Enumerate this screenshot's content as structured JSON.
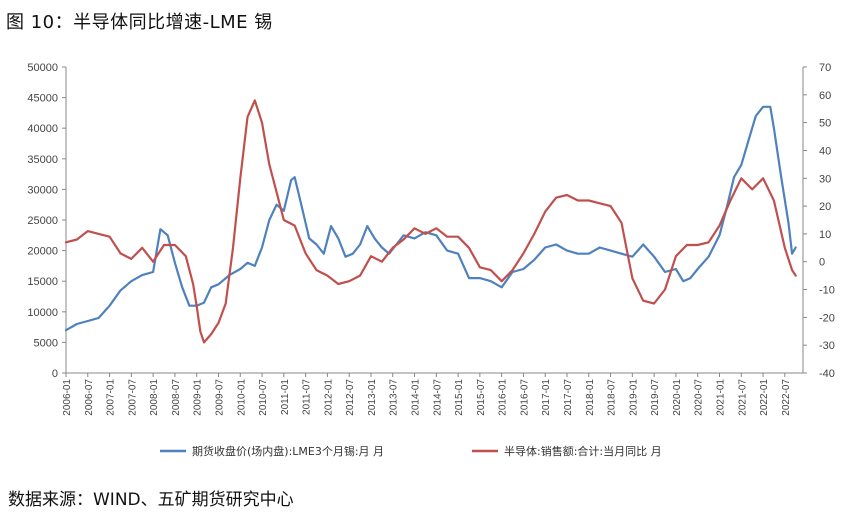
{
  "figure_title": "图 10：半导体同比增速-LME 锡",
  "source_note": "数据来源：WIND、五矿期货研究中心",
  "colors": {
    "tin": "#4f81bd",
    "semi": "#c0504d",
    "axis": "#888888"
  },
  "chart_data": {
    "type": "line",
    "title": "图 10：半导体同比增速-LME 锡",
    "grid": false,
    "legend_position": "bottom",
    "x_ticks": [
      "2006-01",
      "2006-07",
      "2007-01",
      "2007-07",
      "2008-01",
      "2008-07",
      "2009-01",
      "2009-07",
      "2010-01",
      "2010-07",
      "2011-01",
      "2011-07",
      "2012-01",
      "2012-07",
      "2013-01",
      "2013-07",
      "2014-01",
      "2014-07",
      "2015-01",
      "2015-07",
      "2016-01",
      "2016-07",
      "2017-01",
      "2017-07",
      "2018-01",
      "2018-07",
      "2019-01",
      "2019-07",
      "2020-01",
      "2020-07",
      "2021-01",
      "2021-07",
      "2022-01",
      "2022-07"
    ],
    "y_left": {
      "min": 0,
      "max": 50000,
      "ticks": [
        "0",
        "5000",
        "10000",
        "15000",
        "20000",
        "25000",
        "30000",
        "35000",
        "40000",
        "45000",
        "50000"
      ]
    },
    "y_right": {
      "min": -40,
      "max": 70,
      "ticks": [
        "-40",
        "-30",
        "-20",
        "-10",
        "0",
        "10",
        "20",
        "30",
        "40",
        "50",
        "60",
        "70"
      ]
    },
    "series": [
      {
        "name": "期货收盘价(场内盘):LME3个月锡:月 月",
        "axis": "left",
        "x": [
          "2006-01",
          "2006-04",
          "2006-07",
          "2006-10",
          "2007-01",
          "2007-04",
          "2007-07",
          "2007-10",
          "2008-01",
          "2008-03",
          "2008-05",
          "2008-07",
          "2008-09",
          "2008-11",
          "2009-01",
          "2009-03",
          "2009-05",
          "2009-07",
          "2009-10",
          "2010-01",
          "2010-03",
          "2010-05",
          "2010-07",
          "2010-09",
          "2010-11",
          "2011-01",
          "2011-03",
          "2011-04",
          "2011-06",
          "2011-08",
          "2011-10",
          "2011-12",
          "2012-02",
          "2012-04",
          "2012-06",
          "2012-08",
          "2012-10",
          "2012-12",
          "2013-02",
          "2013-04",
          "2013-06",
          "2013-08",
          "2013-10",
          "2014-01",
          "2014-04",
          "2014-07",
          "2014-10",
          "2015-01",
          "2015-04",
          "2015-07",
          "2015-10",
          "2016-01",
          "2016-04",
          "2016-07",
          "2016-10",
          "2017-01",
          "2017-04",
          "2017-07",
          "2017-10",
          "2018-01",
          "2018-04",
          "2018-07",
          "2018-10",
          "2019-01",
          "2019-04",
          "2019-07",
          "2019-10",
          "2020-01",
          "2020-03",
          "2020-05",
          "2020-07",
          "2020-10",
          "2021-01",
          "2021-03",
          "2021-05",
          "2021-07",
          "2021-09",
          "2021-11",
          "2022-01",
          "2022-03",
          "2022-04",
          "2022-06",
          "2022-08",
          "2022-09",
          "2022-10"
        ],
        "values": [
          7000,
          8000,
          8500,
          9000,
          11000,
          13500,
          15000,
          16000,
          16500,
          23500,
          22500,
          18000,
          14000,
          11000,
          11000,
          11500,
          14000,
          14500,
          16000,
          17000,
          18000,
          17500,
          20500,
          25000,
          27500,
          26500,
          31500,
          32000,
          27000,
          22000,
          21000,
          19500,
          24000,
          22000,
          19000,
          19500,
          21000,
          24000,
          22000,
          20500,
          19500,
          21000,
          22500,
          22000,
          23000,
          22500,
          20000,
          19500,
          15500,
          15500,
          15000,
          14000,
          16500,
          17000,
          18500,
          20500,
          21000,
          20000,
          19500,
          19500,
          20500,
          20000,
          19500,
          19000,
          21000,
          19000,
          16500,
          17000,
          15000,
          15500,
          17000,
          19000,
          22500,
          27000,
          32000,
          34000,
          38000,
          42000,
          43500,
          43500,
          40000,
          32000,
          24500,
          19500,
          20500
        ]
      },
      {
        "name": "半导体:销售额:合计:当月同比 月",
        "axis": "right",
        "x": [
          "2006-01",
          "2006-04",
          "2006-07",
          "2006-10",
          "2007-01",
          "2007-04",
          "2007-07",
          "2007-10",
          "2008-01",
          "2008-04",
          "2008-07",
          "2008-10",
          "2008-12",
          "2009-01",
          "2009-02",
          "2009-03",
          "2009-05",
          "2009-07",
          "2009-09",
          "2009-11",
          "2010-01",
          "2010-03",
          "2010-05",
          "2010-07",
          "2010-09",
          "2010-11",
          "2011-01",
          "2011-04",
          "2011-07",
          "2011-10",
          "2012-01",
          "2012-04",
          "2012-07",
          "2012-10",
          "2013-01",
          "2013-04",
          "2013-07",
          "2013-10",
          "2014-01",
          "2014-04",
          "2014-07",
          "2014-10",
          "2015-01",
          "2015-04",
          "2015-07",
          "2015-10",
          "2016-01",
          "2016-04",
          "2016-07",
          "2016-10",
          "2017-01",
          "2017-04",
          "2017-07",
          "2017-10",
          "2018-01",
          "2018-04",
          "2018-07",
          "2018-10",
          "2019-01",
          "2019-04",
          "2019-07",
          "2019-10",
          "2020-01",
          "2020-04",
          "2020-07",
          "2020-10",
          "2021-01",
          "2021-04",
          "2021-07",
          "2021-10",
          "2022-01",
          "2022-04",
          "2022-07",
          "2022-09",
          "2022-10"
        ],
        "values": [
          7,
          8,
          11,
          10,
          9,
          3,
          1,
          5,
          0,
          6,
          6,
          2,
          -8,
          -16,
          -25,
          -29,
          -26,
          -22,
          -15,
          5,
          30,
          52,
          58,
          50,
          35,
          25,
          15,
          13,
          3,
          -3,
          -5,
          -8,
          -7,
          -5,
          2,
          0,
          5,
          8,
          12,
          10,
          12,
          9,
          9,
          5,
          -2,
          -3,
          -7,
          -3,
          3,
          10,
          18,
          23,
          24,
          22,
          22,
          21,
          20,
          14,
          -6,
          -14,
          -15,
          -10,
          2,
          6,
          6,
          7,
          13,
          22,
          30,
          26,
          30,
          22,
          5,
          -3,
          -5
        ]
      }
    ]
  }
}
